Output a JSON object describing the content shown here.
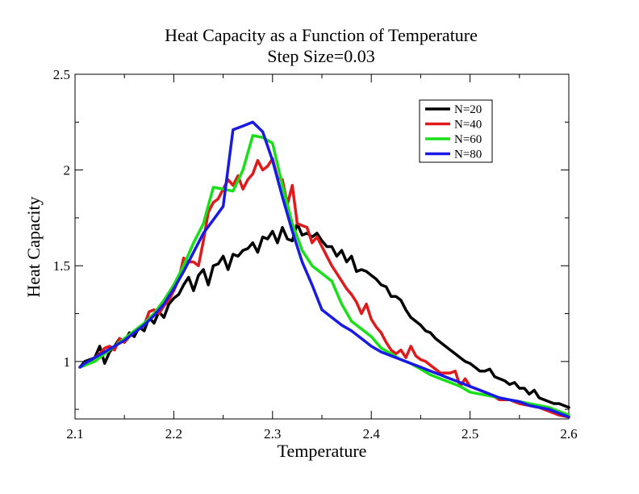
{
  "chart_data": {
    "type": "line",
    "title": "Heat Capacity as a Function of Temperature",
    "subtitle": "Step Size=0.03",
    "xlabel": "Temperature",
    "ylabel": "Heat Capacity",
    "xlim": [
      2.1,
      2.6
    ],
    "ylim": [
      0.7,
      2.5
    ],
    "xticks": [
      2.1,
      2.2,
      2.3,
      2.4,
      2.5,
      2.6
    ],
    "xtick_labels": [
      "2.1",
      "2.2",
      "2.3",
      "2.4",
      "2.5",
      "2.6"
    ],
    "yticks": [
      1,
      1.5,
      2,
      2.5
    ],
    "ytick_labels": [
      "1",
      "1.5",
      "2",
      "2.5"
    ],
    "grid": false,
    "legend_position": "top-right",
    "series": [
      {
        "name": "N=20",
        "color": "#000000",
        "x": [
          2.105,
          2.11,
          2.115,
          2.12,
          2.125,
          2.13,
          2.135,
          2.14,
          2.145,
          2.15,
          2.155,
          2.16,
          2.165,
          2.17,
          2.175,
          2.18,
          2.185,
          2.19,
          2.195,
          2.2,
          2.205,
          2.21,
          2.215,
          2.22,
          2.225,
          2.23,
          2.235,
          2.24,
          2.245,
          2.25,
          2.255,
          2.26,
          2.265,
          2.27,
          2.275,
          2.28,
          2.285,
          2.29,
          2.295,
          2.3,
          2.305,
          2.31,
          2.315,
          2.32,
          2.325,
          2.33,
          2.335,
          2.34,
          2.345,
          2.35,
          2.355,
          2.36,
          2.365,
          2.37,
          2.375,
          2.38,
          2.385,
          2.39,
          2.395,
          2.4,
          2.405,
          2.41,
          2.415,
          2.42,
          2.425,
          2.43,
          2.435,
          2.44,
          2.445,
          2.45,
          2.455,
          2.46,
          2.465,
          2.47,
          2.475,
          2.48,
          2.485,
          2.49,
          2.495,
          2.5,
          2.505,
          2.51,
          2.515,
          2.52,
          2.525,
          2.53,
          2.535,
          2.54,
          2.545,
          2.55,
          2.555,
          2.56,
          2.565,
          2.57,
          2.575,
          2.58,
          2.585,
          2.59,
          2.595,
          2.6
        ],
        "y": [
          0.97,
          1.0,
          1.01,
          1.02,
          1.08,
          0.99,
          1.05,
          1.08,
          1.12,
          1.1,
          1.15,
          1.13,
          1.18,
          1.16,
          1.23,
          1.2,
          1.26,
          1.23,
          1.3,
          1.33,
          1.35,
          1.4,
          1.44,
          1.37,
          1.45,
          1.48,
          1.4,
          1.5,
          1.51,
          1.55,
          1.48,
          1.56,
          1.55,
          1.58,
          1.59,
          1.62,
          1.57,
          1.65,
          1.64,
          1.68,
          1.62,
          1.7,
          1.64,
          1.63,
          1.72,
          1.66,
          1.67,
          1.65,
          1.67,
          1.63,
          1.6,
          1.6,
          1.55,
          1.58,
          1.52,
          1.55,
          1.47,
          1.48,
          1.47,
          1.45,
          1.43,
          1.4,
          1.39,
          1.34,
          1.34,
          1.32,
          1.27,
          1.23,
          1.21,
          1.19,
          1.16,
          1.15,
          1.12,
          1.1,
          1.08,
          1.06,
          1.04,
          1.02,
          1.0,
          0.99,
          0.97,
          0.95,
          0.95,
          0.96,
          0.92,
          0.91,
          0.9,
          0.88,
          0.89,
          0.86,
          0.86,
          0.83,
          0.85,
          0.81,
          0.8,
          0.79,
          0.78,
          0.78,
          0.77,
          0.76
        ]
      },
      {
        "name": "N=40",
        "color": "#e0191b",
        "x": [
          2.105,
          2.11,
          2.115,
          2.12,
          2.125,
          2.13,
          2.135,
          2.14,
          2.145,
          2.15,
          2.155,
          2.16,
          2.165,
          2.17,
          2.175,
          2.18,
          2.185,
          2.19,
          2.195,
          2.2,
          2.205,
          2.21,
          2.215,
          2.22,
          2.225,
          2.23,
          2.235,
          2.24,
          2.245,
          2.25,
          2.255,
          2.26,
          2.265,
          2.27,
          2.275,
          2.28,
          2.285,
          2.29,
          2.295,
          2.3,
          2.305,
          2.31,
          2.315,
          2.32,
          2.325,
          2.33,
          2.335,
          2.34,
          2.345,
          2.35,
          2.355,
          2.36,
          2.365,
          2.37,
          2.375,
          2.38,
          2.385,
          2.39,
          2.395,
          2.4,
          2.405,
          2.41,
          2.415,
          2.42,
          2.425,
          2.43,
          2.435,
          2.44,
          2.445,
          2.45,
          2.455,
          2.46,
          2.465,
          2.47,
          2.475,
          2.48,
          2.485,
          2.49,
          2.495,
          2.5,
          2.51,
          2.52,
          2.53,
          2.54,
          2.55,
          2.56,
          2.57,
          2.58,
          2.59,
          2.6
        ],
        "y": [
          0.97,
          0.98,
          1.0,
          1.02,
          1.04,
          1.07,
          1.08,
          1.06,
          1.12,
          1.1,
          1.13,
          1.15,
          1.17,
          1.19,
          1.26,
          1.27,
          1.25,
          1.29,
          1.32,
          1.37,
          1.43,
          1.54,
          1.52,
          1.52,
          1.5,
          1.63,
          1.78,
          1.83,
          1.85,
          1.9,
          1.95,
          1.92,
          1.97,
          1.9,
          1.95,
          1.98,
          2.05,
          2.0,
          2.02,
          2.06,
          1.96,
          1.95,
          1.82,
          1.92,
          1.72,
          1.71,
          1.7,
          1.62,
          1.65,
          1.6,
          1.55,
          1.5,
          1.46,
          1.42,
          1.38,
          1.35,
          1.31,
          1.25,
          1.3,
          1.22,
          1.18,
          1.15,
          1.1,
          1.06,
          1.04,
          1.06,
          1.02,
          1.08,
          1.03,
          1.01,
          1.0,
          0.98,
          0.96,
          0.94,
          0.94,
          0.94,
          0.95,
          0.87,
          0.91,
          0.87,
          0.85,
          0.83,
          0.8,
          0.8,
          0.78,
          0.77,
          0.76,
          0.74,
          0.72,
          0.71
        ]
      },
      {
        "name": "N=60",
        "color": "#18e018",
        "x": [
          2.105,
          2.11,
          2.12,
          2.13,
          2.14,
          2.15,
          2.16,
          2.17,
          2.18,
          2.19,
          2.2,
          2.21,
          2.22,
          2.23,
          2.24,
          2.25,
          2.26,
          2.27,
          2.28,
          2.29,
          2.3,
          2.31,
          2.32,
          2.33,
          2.34,
          2.35,
          2.36,
          2.37,
          2.38,
          2.39,
          2.4,
          2.41,
          2.42,
          2.43,
          2.44,
          2.45,
          2.46,
          2.47,
          2.48,
          2.49,
          2.5,
          2.51,
          2.52,
          2.53,
          2.54,
          2.55,
          2.56,
          2.57,
          2.58,
          2.59,
          2.6
        ],
        "y": [
          0.97,
          0.98,
          1.0,
          1.04,
          1.08,
          1.12,
          1.16,
          1.2,
          1.25,
          1.32,
          1.4,
          1.5,
          1.62,
          1.72,
          1.91,
          1.9,
          1.89,
          2.0,
          2.18,
          2.17,
          2.14,
          1.92,
          1.72,
          1.58,
          1.5,
          1.46,
          1.42,
          1.3,
          1.21,
          1.17,
          1.13,
          1.07,
          1.04,
          1.01,
          0.99,
          0.96,
          0.93,
          0.91,
          0.89,
          0.87,
          0.84,
          0.83,
          0.82,
          0.81,
          0.8,
          0.79,
          0.78,
          0.77,
          0.76,
          0.74,
          0.72
        ]
      },
      {
        "name": "N=80",
        "color": "#1a1ae6",
        "x": [
          2.105,
          2.11,
          2.12,
          2.13,
          2.14,
          2.15,
          2.16,
          2.17,
          2.18,
          2.19,
          2.2,
          2.21,
          2.22,
          2.23,
          2.24,
          2.25,
          2.26,
          2.27,
          2.28,
          2.29,
          2.3,
          2.31,
          2.32,
          2.33,
          2.34,
          2.35,
          2.36,
          2.37,
          2.38,
          2.39,
          2.4,
          2.41,
          2.42,
          2.43,
          2.44,
          2.45,
          2.46,
          2.47,
          2.48,
          2.49,
          2.5,
          2.51,
          2.52,
          2.53,
          2.54,
          2.55,
          2.56,
          2.57,
          2.58,
          2.59,
          2.6
        ],
        "y": [
          0.97,
          0.99,
          1.02,
          1.05,
          1.08,
          1.11,
          1.15,
          1.19,
          1.24,
          1.3,
          1.38,
          1.47,
          1.57,
          1.67,
          1.74,
          1.81,
          2.21,
          2.23,
          2.25,
          2.2,
          2.05,
          1.86,
          1.68,
          1.52,
          1.4,
          1.27,
          1.23,
          1.19,
          1.16,
          1.12,
          1.08,
          1.05,
          1.03,
          1.01,
          0.99,
          0.97,
          0.95,
          0.93,
          0.91,
          0.89,
          0.87,
          0.85,
          0.83,
          0.81,
          0.8,
          0.79,
          0.77,
          0.76,
          0.75,
          0.73,
          0.71
        ]
      }
    ]
  }
}
